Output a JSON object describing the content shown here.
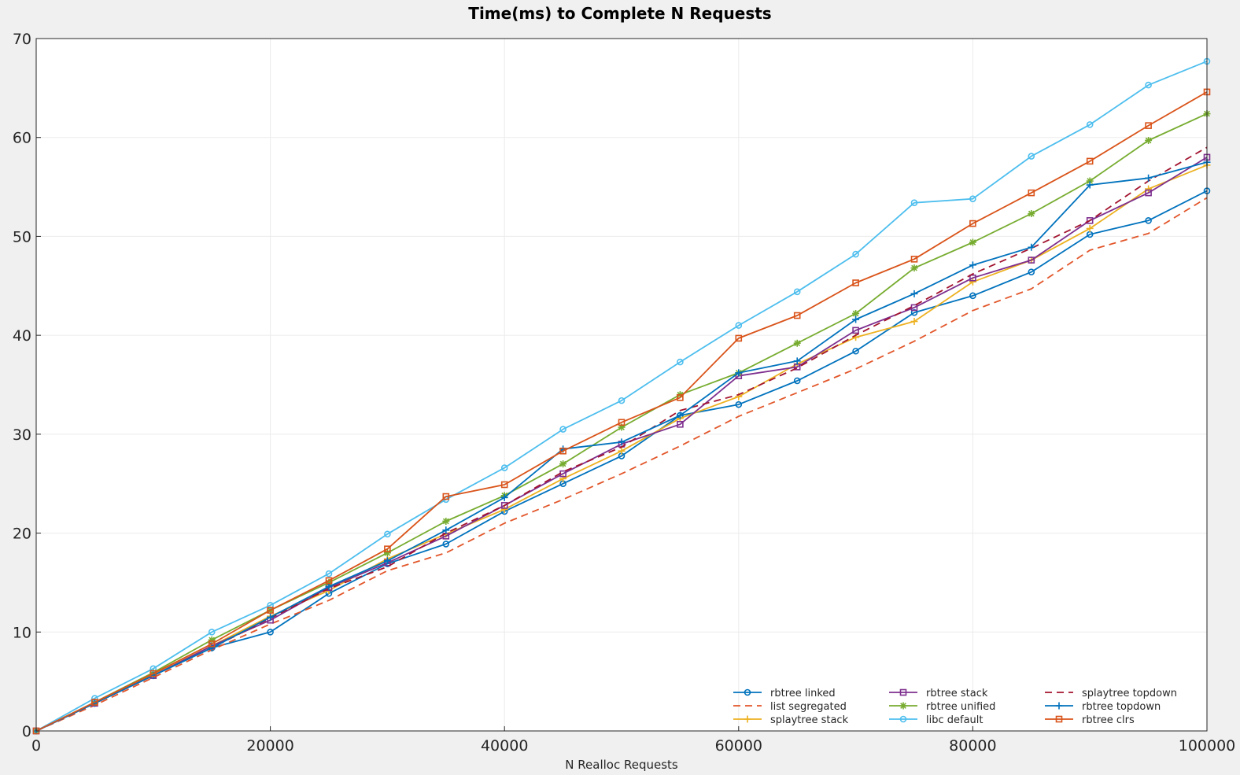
{
  "chart_data": {
    "type": "line",
    "title": "Time(ms) to Complete N Requests",
    "xlabel": "N Realloc Requests",
    "ylabel": "",
    "xlim": [
      0,
      100000
    ],
    "ylim": [
      0,
      70
    ],
    "xticks": [
      0,
      20000,
      40000,
      60000,
      80000,
      100000
    ],
    "yticks": [
      0,
      10,
      20,
      30,
      40,
      50,
      60,
      70
    ],
    "grid": true,
    "legend_position": "bottom-right",
    "x": [
      0,
      5000,
      10000,
      15000,
      20000,
      25000,
      30000,
      35000,
      40000,
      45000,
      50000,
      55000,
      60000,
      65000,
      70000,
      75000,
      80000,
      85000,
      90000,
      95000,
      100000
    ],
    "series": [
      {
        "name": "rbtree linked",
        "color": "#0072bd",
        "dash": "solid",
        "marker": "circle",
        "values": [
          0,
          2.8,
          5.6,
          8.4,
          10.0,
          13.9,
          16.9,
          18.9,
          22.2,
          25.0,
          27.8,
          31.9,
          33.0,
          35.4,
          38.4,
          42.3,
          44.0,
          46.4,
          50.2,
          51.6,
          54.6
        ]
      },
      {
        "name": "list segregated",
        "color": "#e2562a",
        "dash": "dashed",
        "marker": "none",
        "values": [
          0,
          2.6,
          5.4,
          8.2,
          10.8,
          13.2,
          16.2,
          18.0,
          21.0,
          23.4,
          26.0,
          28.8,
          31.8,
          34.2,
          36.6,
          39.4,
          42.5,
          44.7,
          48.6,
          50.3,
          53.9
        ]
      },
      {
        "name": "splaytree stack",
        "color": "#edb120",
        "dash": "solid",
        "marker": "plus",
        "values": [
          0,
          2.8,
          5.7,
          8.6,
          11.6,
          14.2,
          17.4,
          19.9,
          22.4,
          25.5,
          28.3,
          31.6,
          33.8,
          37.1,
          39.8,
          41.4,
          45.4,
          47.6,
          50.8,
          54.8,
          57.2
        ]
      },
      {
        "name": "rbtree stack",
        "color": "#7e2f8e",
        "dash": "solid",
        "marker": "square",
        "values": [
          0,
          2.8,
          5.6,
          8.6,
          11.2,
          14.5,
          17.0,
          19.7,
          22.8,
          26.0,
          29.0,
          31.0,
          35.9,
          36.8,
          40.5,
          42.8,
          45.8,
          47.6,
          51.6,
          54.4,
          58.0
        ]
      },
      {
        "name": "rbtree unified",
        "color": "#77ac30",
        "dash": "solid",
        "marker": "asterisk",
        "values": [
          0,
          2.9,
          5.9,
          9.2,
          12.2,
          15.0,
          18.0,
          21.2,
          23.8,
          27.0,
          30.7,
          34.0,
          36.2,
          39.2,
          42.2,
          46.8,
          49.4,
          52.3,
          55.6,
          59.7,
          62.4
        ]
      },
      {
        "name": "libc default",
        "color": "#4dbeee",
        "dash": "solid",
        "marker": "circle",
        "values": [
          0,
          3.3,
          6.3,
          10.0,
          12.7,
          15.9,
          19.9,
          23.4,
          26.6,
          30.5,
          33.4,
          37.3,
          41.0,
          44.4,
          48.2,
          53.4,
          53.8,
          58.1,
          61.3,
          65.3,
          67.7
        ]
      },
      {
        "name": "splaytree topdown",
        "color": "#a2142f",
        "dash": "dashed",
        "marker": "none",
        "values": [
          0,
          2.8,
          5.6,
          8.4,
          11.4,
          14.4,
          16.6,
          20.0,
          22.8,
          26.2,
          28.7,
          32.4,
          34.0,
          36.7,
          40.0,
          43.0,
          46.2,
          48.8,
          51.6,
          55.6,
          59.0
        ]
      },
      {
        "name": "rbtree topdown",
        "color": "#0072bd",
        "dash": "solid",
        "marker": "plus",
        "values": [
          0,
          2.8,
          5.6,
          8.4,
          11.5,
          14.6,
          17.2,
          20.3,
          23.6,
          28.5,
          29.2,
          31.9,
          36.2,
          37.4,
          41.6,
          44.2,
          47.1,
          48.9,
          55.2,
          55.9,
          57.5
        ]
      },
      {
        "name": "rbtree clrs",
        "color": "#d95319",
        "dash": "solid",
        "marker": "square",
        "values": [
          0,
          2.9,
          5.8,
          8.8,
          12.2,
          15.2,
          18.4,
          23.7,
          24.9,
          28.3,
          31.2,
          33.7,
          39.7,
          42.0,
          45.3,
          47.7,
          51.3,
          54.4,
          57.6,
          61.2,
          64.6
        ]
      }
    ]
  }
}
